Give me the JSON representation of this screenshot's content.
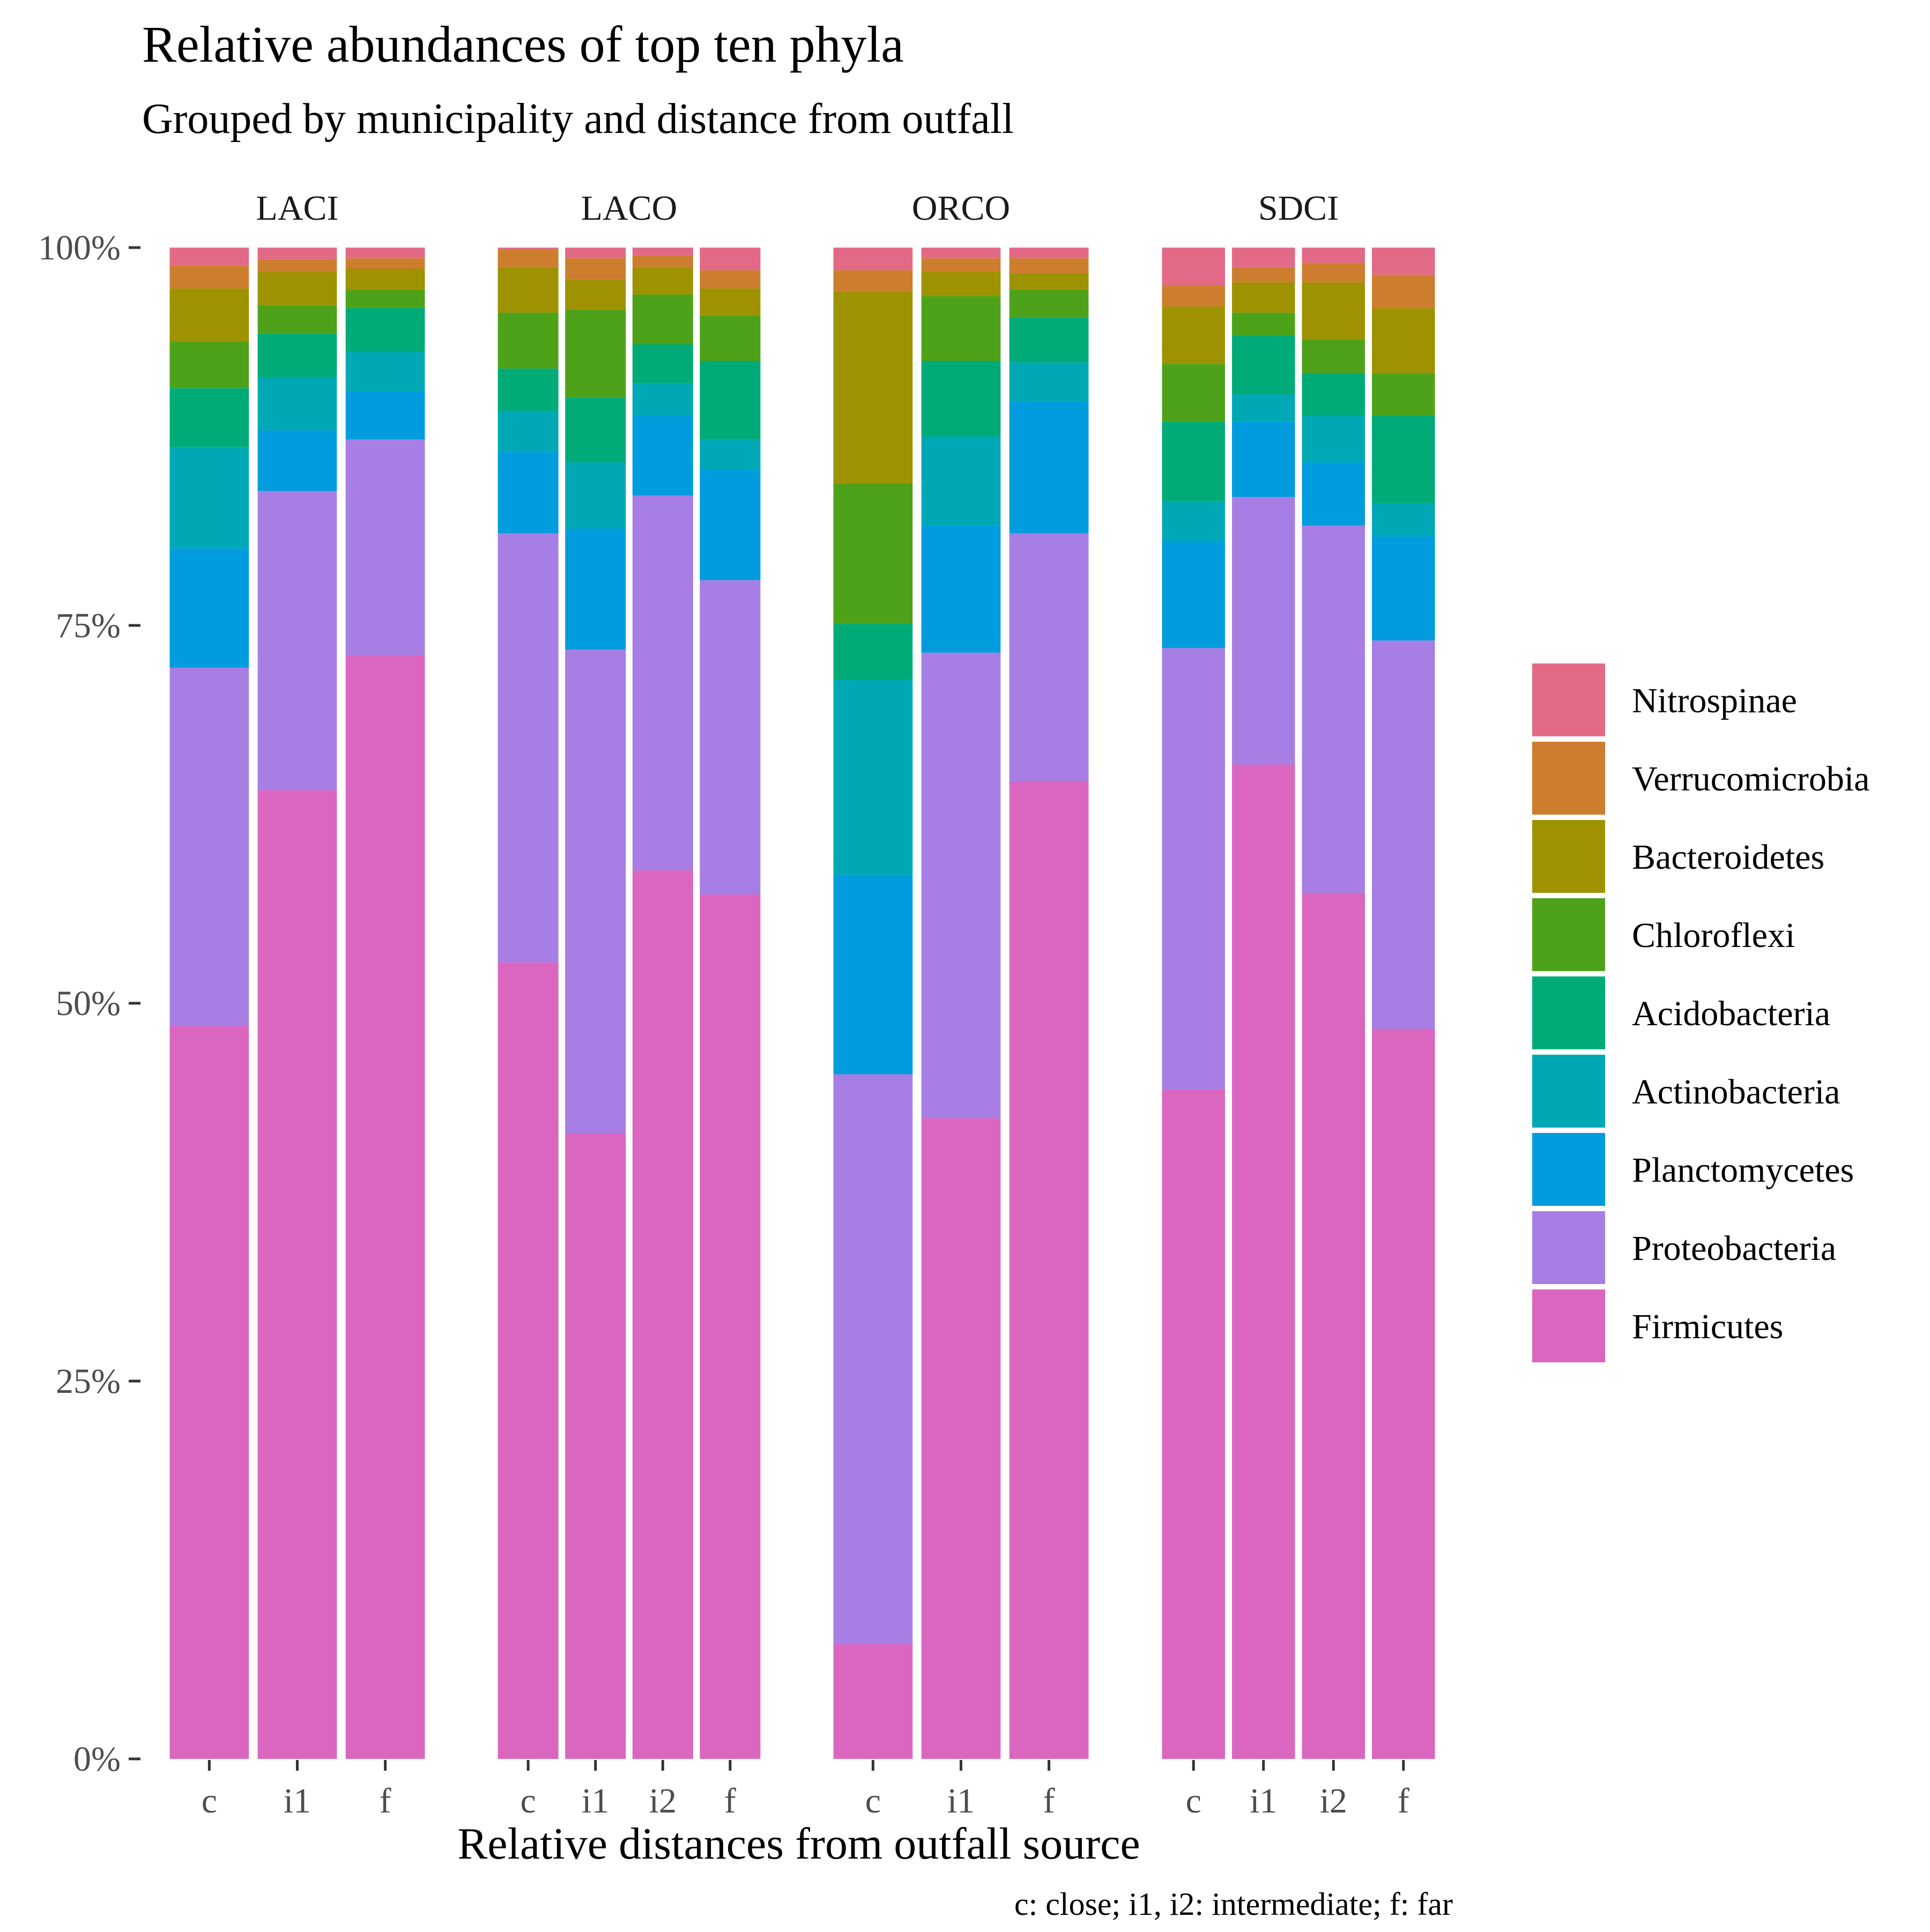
{
  "chart_data": {
    "type": "bar",
    "stacked": true,
    "normalized": true,
    "title": "Relative abundances of top ten phyla",
    "subtitle": "Grouped by municipality and distance from outfall",
    "xlabel": "Relative distances from outfall source",
    "ylabel": "",
    "caption": "c: close; i1, i2: intermediate; f: far",
    "ylim": [
      0,
      100
    ],
    "y_ticks": [
      "0%",
      "25%",
      "50%",
      "75%",
      "100%"
    ],
    "y_tick_values": [
      0,
      25,
      50,
      75,
      100
    ],
    "legend_position": "right",
    "stack_order": [
      "Firmicutes",
      "Proteobacteria",
      "Planctomycetes",
      "Actinobacteria",
      "Acidobacteria",
      "Chloroflexi",
      "Bacteroidetes",
      "Verrucomicrobia",
      "Nitrospinae"
    ],
    "series": [
      {
        "name": "Nitrospinae",
        "color": "#E26A86"
      },
      {
        "name": "Verrucomicrobia",
        "color": "#CC7D2E"
      },
      {
        "name": "Bacteroidetes",
        "color": "#9E9200"
      },
      {
        "name": "Chloroflexi",
        "color": "#4EA219"
      },
      {
        "name": "Acidobacteria",
        "color": "#00AB77"
      },
      {
        "name": "Actinobacteria",
        "color": "#00A8B5"
      },
      {
        "name": "Planctomycetes",
        "color": "#009CDD"
      },
      {
        "name": "Proteobacteria",
        "color": "#A67EE4"
      },
      {
        "name": "Firmicutes",
        "color": "#DA66C0"
      }
    ],
    "facets": [
      {
        "name": "LACI",
        "bars": [
          {
            "category": "c",
            "Firmicutes": 48.5,
            "Proteobacteria": 23.7,
            "Planctomycetes": 7.9,
            "Actinobacteria": 6.7,
            "Acidobacteria": 3.9,
            "Chloroflexi": 3.1,
            "Bacteroidetes": 3.5,
            "Verrucomicrobia": 1.5,
            "Nitrospinae": 1.2
          },
          {
            "category": "i1",
            "Firmicutes": 64.1,
            "Proteobacteria": 19.8,
            "Planctomycetes": 4.0,
            "Actinobacteria": 3.5,
            "Acidobacteria": 2.9,
            "Chloroflexi": 1.9,
            "Bacteroidetes": 2.2,
            "Verrucomicrobia": 0.8,
            "Nitrospinae": 0.8
          },
          {
            "category": "f",
            "Firmicutes": 73.0,
            "Proteobacteria": 14.3,
            "Planctomycetes": 3.2,
            "Actinobacteria": 2.6,
            "Acidobacteria": 2.9,
            "Chloroflexi": 1.2,
            "Bacteroidetes": 1.4,
            "Verrucomicrobia": 0.7,
            "Nitrospinae": 0.7
          }
        ]
      },
      {
        "name": "LACO",
        "bars": [
          {
            "category": "c",
            "Firmicutes": 52.7,
            "Proteobacteria": 28.4,
            "Planctomycetes": 5.4,
            "Actinobacteria": 2.7,
            "Acidobacteria": 2.8,
            "Chloroflexi": 3.7,
            "Bacteroidetes": 3.0,
            "Verrucomicrobia": 1.2,
            "Nitrospinae": 0.1
          },
          {
            "category": "i1",
            "Firmicutes": 41.4,
            "Proteobacteria": 32.0,
            "Planctomycetes": 8.0,
            "Actinobacteria": 4.4,
            "Acidobacteria": 4.3,
            "Chloroflexi": 5.8,
            "Bacteroidetes": 2.0,
            "Verrucomicrobia": 1.4,
            "Nitrospinae": 0.7
          },
          {
            "category": "i2",
            "Firmicutes": 58.8,
            "Proteobacteria": 24.8,
            "Planctomycetes": 5.3,
            "Actinobacteria": 2.1,
            "Acidobacteria": 2.6,
            "Chloroflexi": 3.3,
            "Bacteroidetes": 1.8,
            "Verrucomicrobia": 0.8,
            "Nitrospinae": 0.5
          },
          {
            "category": "f",
            "Firmicutes": 57.2,
            "Proteobacteria": 20.8,
            "Planctomycetes": 7.3,
            "Actinobacteria": 2.0,
            "Acidobacteria": 5.2,
            "Chloroflexi": 3.0,
            "Bacteroidetes": 1.8,
            "Verrucomicrobia": 1.2,
            "Nitrospinae": 1.5
          }
        ]
      },
      {
        "name": "ORCO",
        "bars": [
          {
            "category": "c",
            "Firmicutes": 7.6,
            "Proteobacteria": 37.7,
            "Planctomycetes": 13.2,
            "Actinobacteria": 12.9,
            "Acidobacteria": 3.7,
            "Chloroflexi": 9.3,
            "Bacteroidetes": 12.7,
            "Verrucomicrobia": 1.4,
            "Nitrospinae": 1.5
          },
          {
            "category": "i1",
            "Firmicutes": 42.4,
            "Proteobacteria": 30.8,
            "Planctomycetes": 8.4,
            "Actinobacteria": 5.9,
            "Acidobacteria": 5.0,
            "Chloroflexi": 4.3,
            "Bacteroidetes": 1.6,
            "Verrucomicrobia": 0.9,
            "Nitrospinae": 0.7
          },
          {
            "category": "f",
            "Firmicutes": 64.7,
            "Proteobacteria": 16.4,
            "Planctomycetes": 8.7,
            "Actinobacteria": 2.6,
            "Acidobacteria": 3.0,
            "Chloroflexi": 1.8,
            "Bacteroidetes": 1.1,
            "Verrucomicrobia": 1.0,
            "Nitrospinae": 0.7
          }
        ]
      },
      {
        "name": "SDCI",
        "bars": [
          {
            "category": "c",
            "Firmicutes": 44.3,
            "Proteobacteria": 29.2,
            "Planctomycetes": 7.1,
            "Actinobacteria": 2.6,
            "Acidobacteria": 5.3,
            "Chloroflexi": 3.8,
            "Bacteroidetes": 3.8,
            "Verrucomicrobia": 1.4,
            "Nitrospinae": 2.5
          },
          {
            "category": "i1",
            "Firmicutes": 65.8,
            "Proteobacteria": 17.7,
            "Planctomycetes": 5.0,
            "Actinobacteria": 1.8,
            "Acidobacteria": 3.9,
            "Chloroflexi": 1.5,
            "Bacteroidetes": 2.0,
            "Verrucomicrobia": 1.0,
            "Nitrospinae": 1.3
          },
          {
            "category": "i2",
            "Firmicutes": 57.3,
            "Proteobacteria": 24.3,
            "Planctomycetes": 4.2,
            "Actinobacteria": 3.1,
            "Acidobacteria": 2.8,
            "Chloroflexi": 2.2,
            "Bacteroidetes": 3.8,
            "Verrucomicrobia": 1.3,
            "Nitrospinae": 1.0
          },
          {
            "category": "f",
            "Firmicutes": 48.3,
            "Proteobacteria": 25.7,
            "Planctomycetes": 6.9,
            "Actinobacteria": 2.2,
            "Acidobacteria": 5.8,
            "Chloroflexi": 2.8,
            "Bacteroidetes": 4.3,
            "Verrucomicrobia": 2.2,
            "Nitrospinae": 1.8
          }
        ]
      }
    ]
  }
}
